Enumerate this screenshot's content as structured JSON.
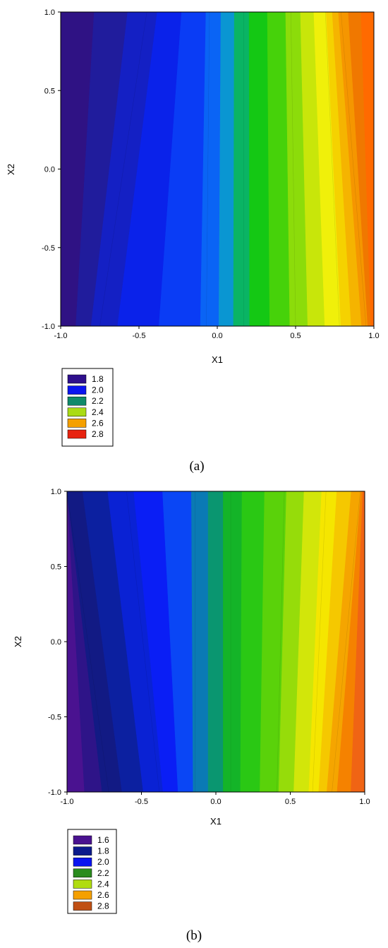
{
  "chart_data": [
    {
      "type": "contour",
      "caption": "(a)",
      "xlabel": "X1",
      "ylabel": "X2",
      "xlim": [
        -1.0,
        1.0
      ],
      "ylim": [
        -1.0,
        1.0
      ],
      "x_ticks": [
        "-1.0",
        "-0.5",
        "0.0",
        "0.5",
        "1.0"
      ],
      "y_ticks": [
        "-1.0",
        "-0.5",
        "0.0",
        "0.5",
        "1.0"
      ],
      "legend": [
        {
          "label": "1.8",
          "color": "#2e0f8c"
        },
        {
          "label": "2.0",
          "color": "#0a14f0"
        },
        {
          "label": "2.2",
          "color": "#0f8a6a"
        },
        {
          "label": "2.4",
          "color": "#aadc14"
        },
        {
          "label": "2.6",
          "color": "#f5a000"
        },
        {
          "label": "2.8",
          "color": "#e8230f"
        }
      ],
      "contours": [
        {
          "level": 1.8,
          "x_at_y_max": -0.45,
          "x_at_y_min": -0.75
        },
        {
          "level": 2.0,
          "x_at_y_max": -0.05,
          "x_at_y_min": -0.07
        },
        {
          "level": 2.2,
          "x_at_y_max": 0.17,
          "x_at_y_min": 0.17
        },
        {
          "level": 2.4,
          "x_at_y_max": 0.47,
          "x_at_y_min": 0.5
        },
        {
          "level": 2.6,
          "x_at_y_max": 0.69,
          "x_at_y_min": 0.78
        },
        {
          "level": 2.8,
          "x_at_y_max": 0.79,
          "x_at_y_min": 0.95
        }
      ]
    },
    {
      "type": "contour",
      "caption": "(b)",
      "xlabel": "X1",
      "ylabel": "X2",
      "xlim": [
        -1.0,
        1.0
      ],
      "ylim": [
        -1.0,
        1.0
      ],
      "x_ticks": [
        "-1.0",
        "-0.5",
        "0.0",
        "0.5",
        "1.0"
      ],
      "y_ticks": [
        "-1.0",
        "-0.5",
        "0.0",
        "0.5",
        "1.0"
      ],
      "legend": [
        {
          "label": "1.6",
          "color": "#4a1290"
        },
        {
          "label": "1.8",
          "color": "#0c1a8c"
        },
        {
          "label": "2.0",
          "color": "#0a14f0"
        },
        {
          "label": "2.2",
          "color": "#2a8c1e"
        },
        {
          "label": "2.4",
          "color": "#b0dc10"
        },
        {
          "label": "2.6",
          "color": "#f5a000"
        },
        {
          "label": "2.8",
          "color": "#c05014"
        }
      ],
      "contours": [
        {
          "level": 1.6,
          "x_at_y_max": -1.0,
          "x_at_y_min": -0.72
        },
        {
          "level": 1.8,
          "x_at_y_max": -0.6,
          "x_at_y_min": -0.38
        },
        {
          "level": 2.0,
          "x_at_y_max": -0.14,
          "x_at_y_min": -0.14
        },
        {
          "level": 2.2,
          "x_at_y_max": 0.1,
          "x_at_y_min": 0.1
        },
        {
          "level": 2.4,
          "x_at_y_max": 0.46,
          "x_at_y_min": 0.41
        },
        {
          "level": 2.6,
          "x_at_y_max": 0.74,
          "x_at_y_min": 0.65
        },
        {
          "level": 2.8,
          "x_at_y_max": 0.97,
          "x_at_y_min": 0.78
        }
      ]
    }
  ]
}
